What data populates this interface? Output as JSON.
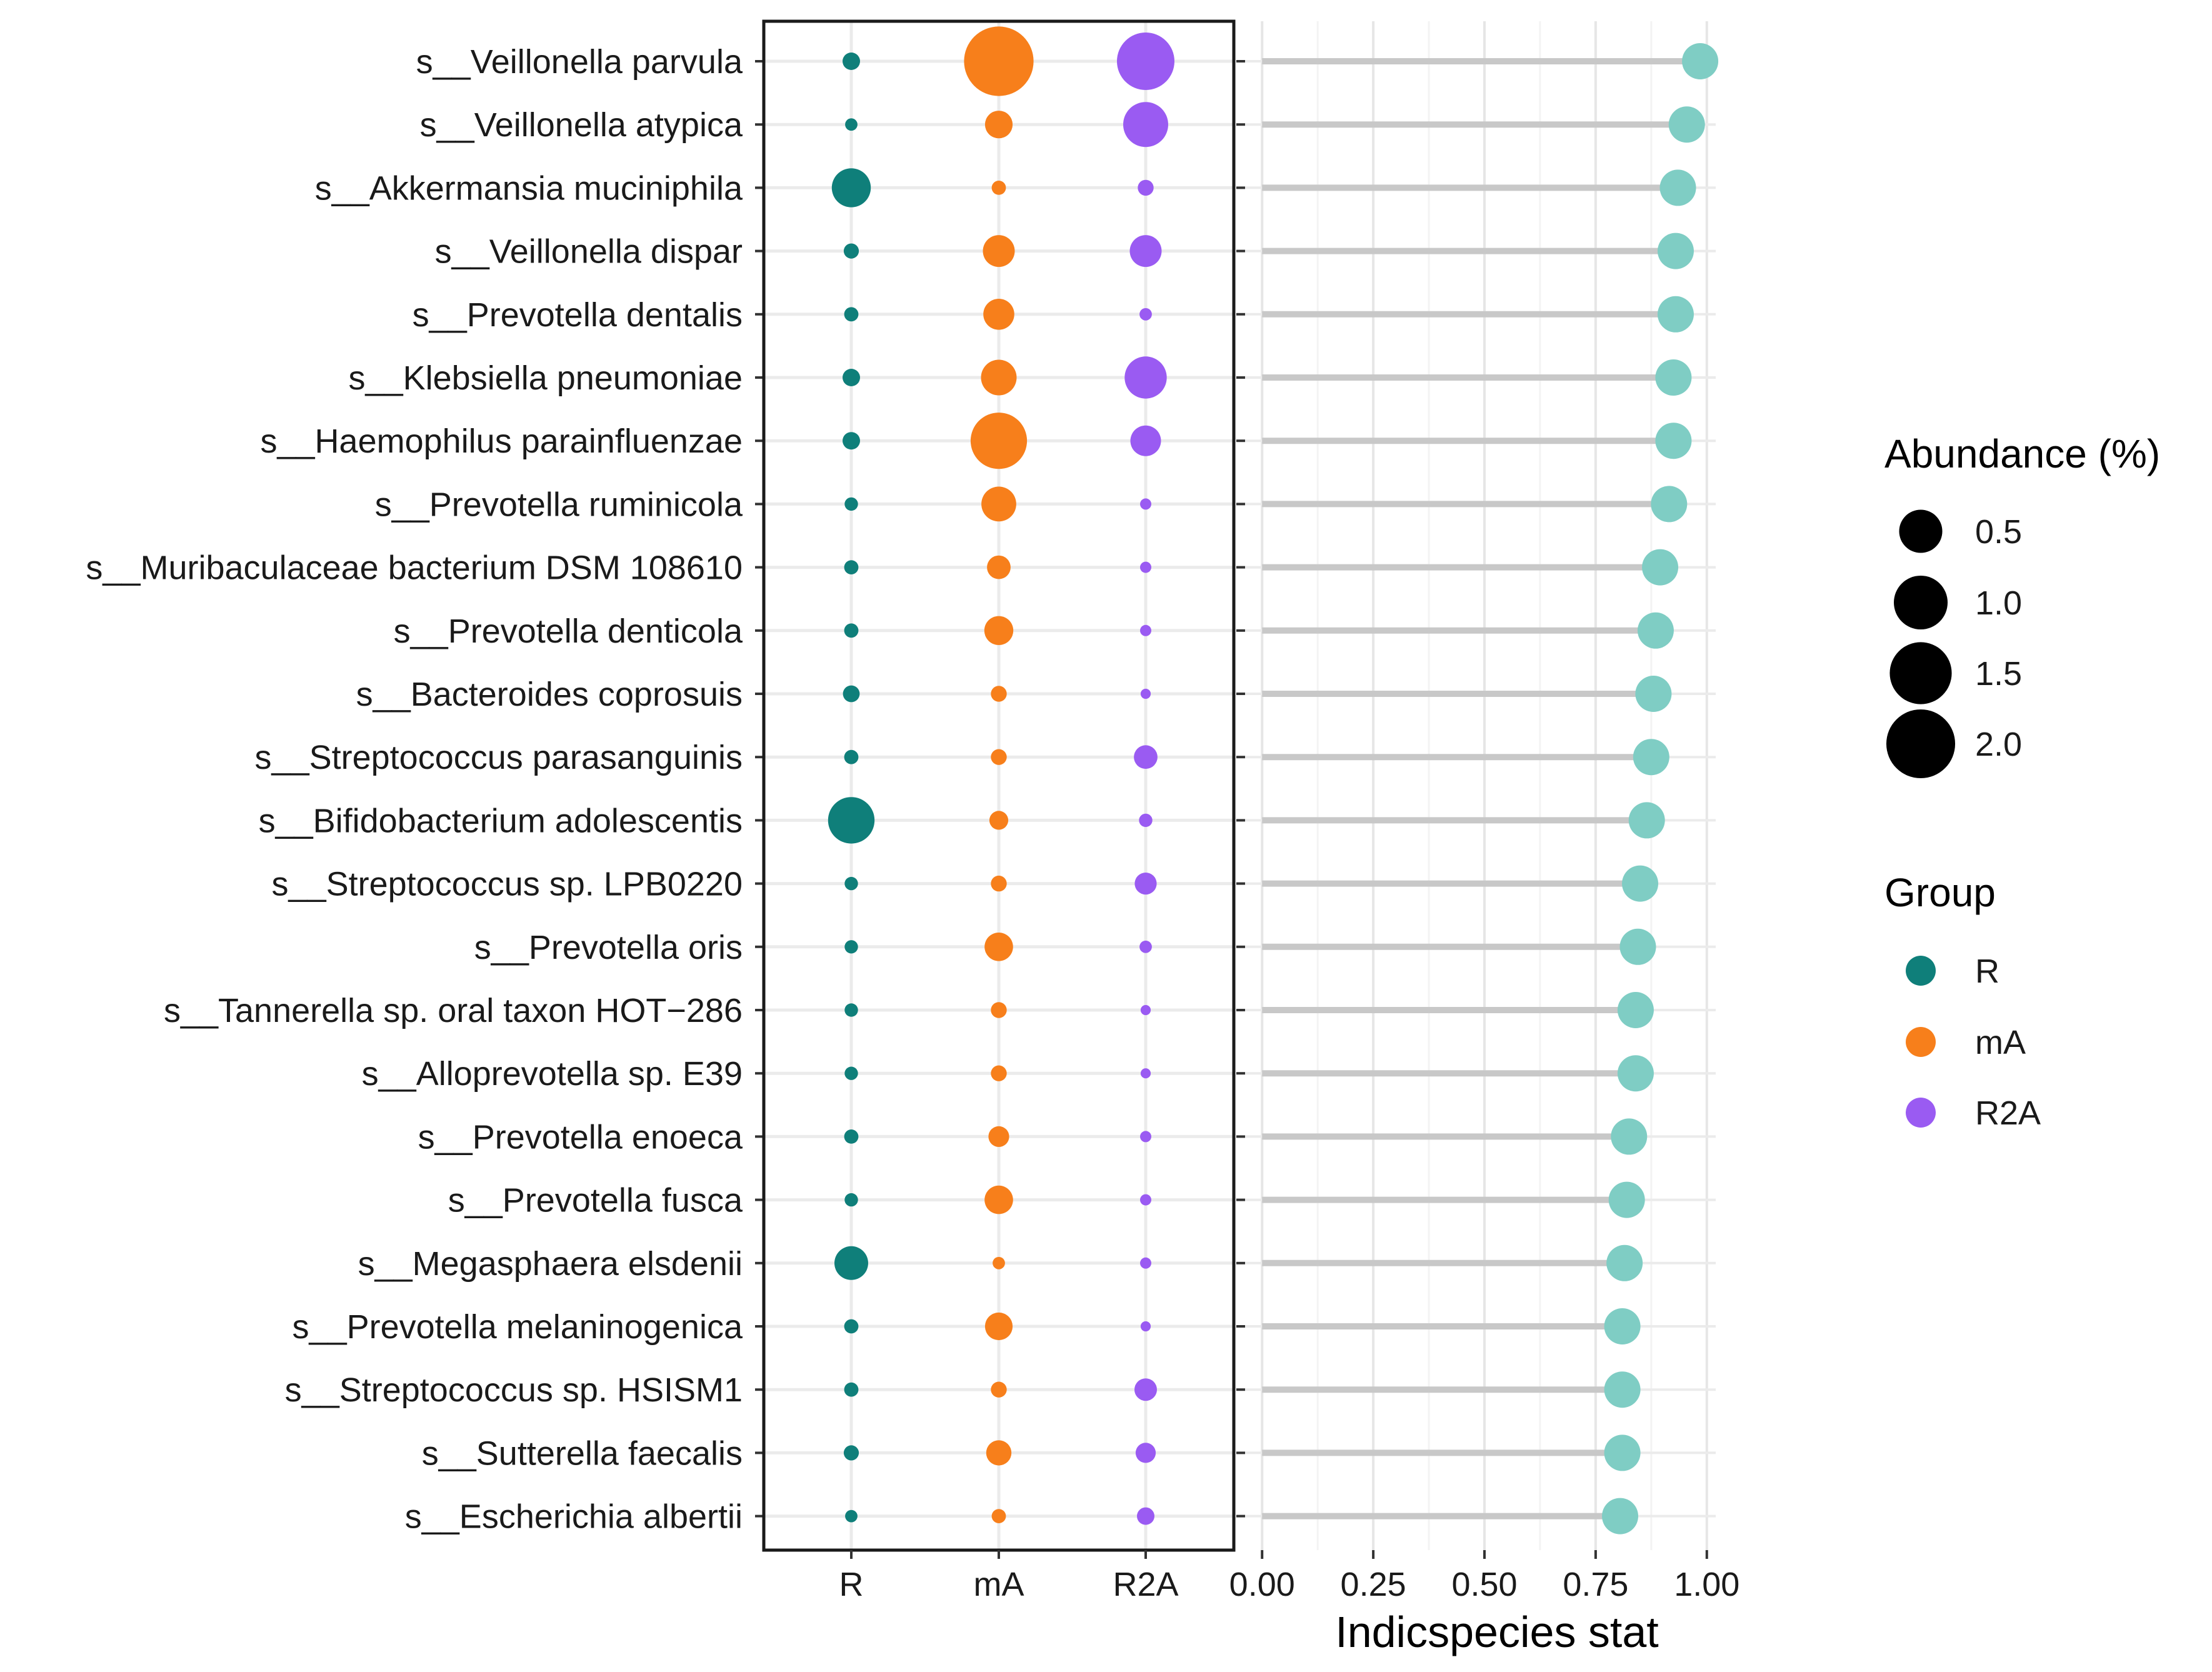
{
  "chart_data": [
    {
      "type": "scatter",
      "name": "bubble-plot",
      "description_role": "dot plot of abundance per group",
      "categories_x": [
        "R",
        "mA",
        "R2A"
      ],
      "species": [
        "s__Veillonella parvula",
        "s__Veillonella atypica",
        "s__Akkermansia muciniphila",
        "s__Veillonella dispar",
        "s__Prevotella dentalis",
        "s__Klebsiella pneumoniae",
        "s__Haemophilus parainfluenzae",
        "s__Prevotella ruminicola",
        "s__Muribaculaceae bacterium DSM 108610",
        "s__Prevotella denticola",
        "s__Bacteroides coprosuis",
        "s__Streptococcus parasanguinis",
        "s__Bifidobacterium adolescentis",
        "s__Streptococcus sp. LPB0220",
        "s__Prevotella oris",
        "s__Tannerella sp. oral taxon HOT−286",
        "s__Alloprevotella sp. E39",
        "s__Prevotella enoeca",
        "s__Prevotella fusca",
        "s__Megasphaera elsdenii",
        "s__Prevotella melaninogenica",
        "s__Streptococcus sp. HSISM1",
        "s__Sutterella faecalis",
        "s__Escherichia albertii"
      ],
      "series": [
        {
          "name": "R",
          "color": "#0f7f7a",
          "values": [
            0.12,
            0.06,
            0.6,
            0.09,
            0.08,
            0.12,
            0.12,
            0.07,
            0.08,
            0.08,
            0.11,
            0.08,
            0.85,
            0.07,
            0.07,
            0.07,
            0.07,
            0.08,
            0.07,
            0.45,
            0.08,
            0.08,
            0.09,
            0.06
          ]
        },
        {
          "name": "mA",
          "color": "#f77f1b",
          "values": [
            1.9,
            0.3,
            0.08,
            0.4,
            0.38,
            0.5,
            1.25,
            0.48,
            0.22,
            0.33,
            0.1,
            0.1,
            0.14,
            0.1,
            0.32,
            0.1,
            0.1,
            0.17,
            0.32,
            0.06,
            0.3,
            0.1,
            0.25,
            0.08
          ]
        },
        {
          "name": "R2A",
          "color": "#9a5bf2",
          "values": [
            1.3,
            0.8,
            0.1,
            0.4,
            0.06,
            0.7,
            0.37,
            0.05,
            0.05,
            0.05,
            0.04,
            0.22,
            0.07,
            0.19,
            0.06,
            0.04,
            0.04,
            0.05,
            0.05,
            0.05,
            0.04,
            0.2,
            0.16,
            0.12
          ]
        }
      ],
      "size_legend_title": "Abundance (%)",
      "size_legend_values": [
        "0.5",
        "1.0",
        "1.5",
        "2.0"
      ],
      "size_legend_numbers": [
        0.5,
        1.0,
        1.5,
        2.0
      ],
      "color_legend_title": "Group",
      "color_legend_entries": [
        "R",
        "mA",
        "R2A"
      ]
    },
    {
      "type": "lollipop",
      "name": "indicspecies-plot",
      "xlabel": "Indicspecies stat",
      "xlim": [
        0,
        1.0
      ],
      "x_ticks": [
        0.0,
        0.25,
        0.5,
        0.75,
        1.0
      ],
      "x_tick_labels": [
        "0.00",
        "0.25",
        "0.50",
        "0.75",
        "1.00"
      ],
      "point_color": "#7fcdc4",
      "stem_color": "#c8c8c8",
      "values": [
        0.985,
        0.955,
        0.935,
        0.93,
        0.93,
        0.925,
        0.925,
        0.915,
        0.895,
        0.885,
        0.88,
        0.875,
        0.865,
        0.85,
        0.845,
        0.84,
        0.84,
        0.825,
        0.82,
        0.815,
        0.81,
        0.81,
        0.81,
        0.805
      ]
    }
  ]
}
